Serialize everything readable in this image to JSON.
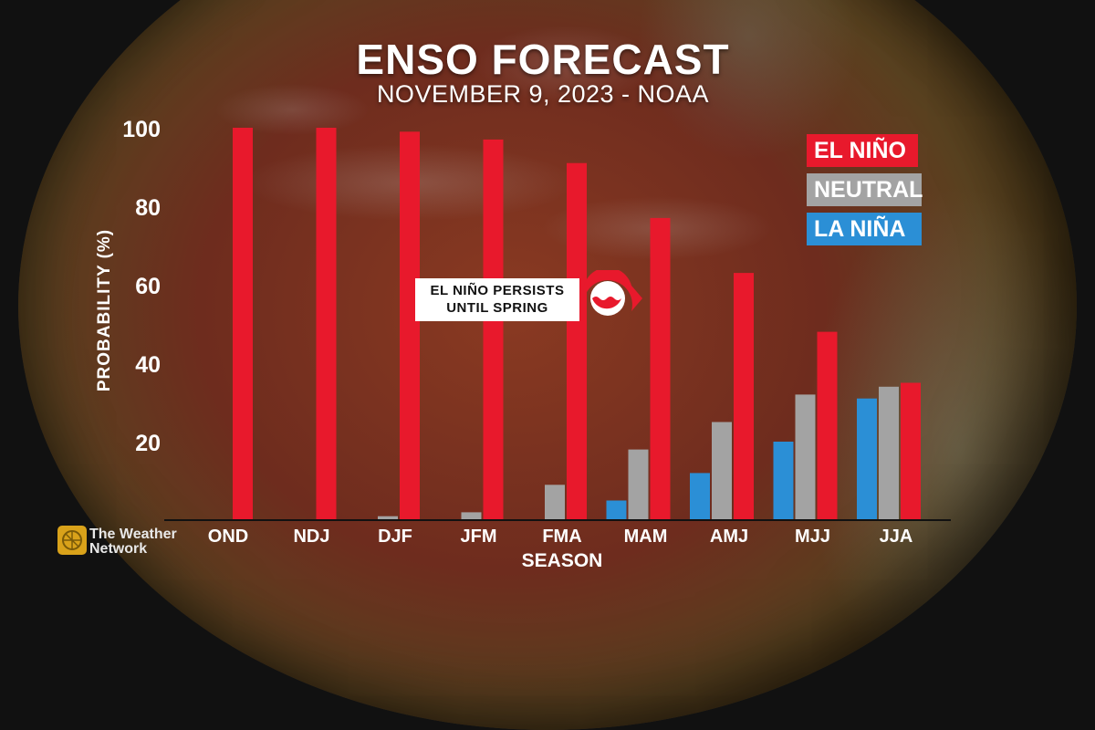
{
  "title": "ENSO FORECAST",
  "subtitle": "NOVEMBER 9, 2023 - NOAA",
  "callout": {
    "line1": "EL NIÑO PERSISTS",
    "line2": "UNTIL SPRING"
  },
  "brand": {
    "line1": "The Weather",
    "line2": "Network"
  },
  "chart_data": {
    "type": "bar",
    "xlabel": "SEASON",
    "ylabel": "PROBABILITY (%)",
    "ylim": [
      0,
      100
    ],
    "yticks": [
      20,
      40,
      60,
      80,
      100
    ],
    "grid": false,
    "legend_position": "top-right",
    "categories": [
      "OND",
      "NDJ",
      "DJF",
      "JFM",
      "FMA",
      "MAM",
      "AMJ",
      "MJJ",
      "JJA"
    ],
    "series": [
      {
        "name": "LA NIÑA",
        "color": "#2b8fd6",
        "values": [
          0,
          0,
          0,
          0,
          0,
          5,
          12,
          20,
          31
        ]
      },
      {
        "name": "NEUTRAL",
        "color": "#a3a3a3",
        "values": [
          0,
          0,
          1,
          2,
          9,
          18,
          25,
          32,
          34
        ]
      },
      {
        "name": "EL NIÑO",
        "color": "#e8192c",
        "values": [
          100,
          100,
          99,
          97,
          91,
          77,
          63,
          48,
          35
        ]
      }
    ]
  }
}
